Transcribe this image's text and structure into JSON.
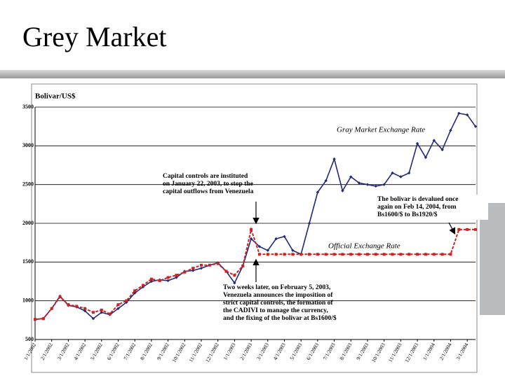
{
  "title": "Grey Market",
  "chart_data": {
    "type": "line",
    "y_label": "Bolivar/US$",
    "categories": [
      "1/1/2002",
      null,
      "2/1/2002",
      null,
      "3/1/2002",
      null,
      "4/1/2002",
      null,
      "5/1/2002",
      null,
      "6/1/2002",
      null,
      "7/1/2002",
      null,
      "8/1/2002",
      null,
      "9/1/2002",
      null,
      "10/1/2002",
      null,
      "11/1/2002",
      null,
      "12/1/2002",
      null,
      "1/1/2003",
      null,
      "2/1/2003",
      null,
      "3/1/2003",
      null,
      "4/1/2003",
      null,
      "5/1/2003",
      null,
      "6/1/2003",
      null,
      "7/1/2003",
      null,
      "8/1/2003",
      null,
      "9/1/2003",
      null,
      "10/1/2003",
      null,
      "11/1/2003",
      null,
      "12/1/2003",
      null,
      "1/1/2004",
      null,
      "2/1/2004",
      null,
      "3/1/2004",
      null
    ],
    "series": [
      {
        "name": "Gray Market Exchange Rate",
        "color": "#1f2a7a",
        "values": [
          760,
          770,
          900,
          1060,
          940,
          920,
          870,
          770,
          850,
          820,
          900,
          980,
          1100,
          1180,
          1250,
          1270,
          1260,
          1300,
          1380,
          1390,
          1420,
          1460,
          1490,
          1380,
          1230,
          1450,
          1800,
          1700,
          1650,
          1800,
          1830,
          1650,
          1600,
          2000,
          2400,
          2550,
          2830,
          2420,
          2600,
          2520,
          2500,
          2480,
          2500,
          2650,
          2600,
          2650,
          3030,
          2850,
          3070,
          2950,
          3200,
          3420,
          3400,
          3250
        ]
      },
      {
        "name": "Official Exchange Rate",
        "color": "#cc2222",
        "values": [
          760,
          770,
          900,
          1050,
          950,
          930,
          900,
          850,
          880,
          830,
          950,
          1000,
          1130,
          1200,
          1280,
          1260,
          1300,
          1330,
          1370,
          1420,
          1460,
          1460,
          1480,
          1380,
          1330,
          1450,
          1920,
          1600,
          1600,
          1600,
          1600,
          1600,
          1600,
          1600,
          1600,
          1600,
          1600,
          1600,
          1600,
          1600,
          1600,
          1600,
          1600,
          1600,
          1600,
          1600,
          1600,
          1600,
          1600,
          1600,
          1600,
          1920,
          1920,
          1920
        ]
      }
    ],
    "ylim": [
      500,
      3500
    ],
    "yticks": [
      500,
      1000,
      1500,
      2000,
      2500,
      3000,
      3500
    ],
    "grid": true,
    "annotations": [
      [
        "Capital controls are instituted",
        "on January 22, 2003, to stop the",
        "capital outflows from Venezuela"
      ],
      [
        "Two weeks later, on February 5, 2003,",
        "Venezuela announces the imposition of",
        "strict capital controls, the formation of",
        "the CADIVI to manage the currency,",
        "and the fixing of the bolivar at Bs1600/$"
      ],
      [
        "The bolivar is devalued once",
        "again on Feb 14, 2004, from",
        "Bs1600/$ to Bs1920/$"
      ]
    ]
  }
}
